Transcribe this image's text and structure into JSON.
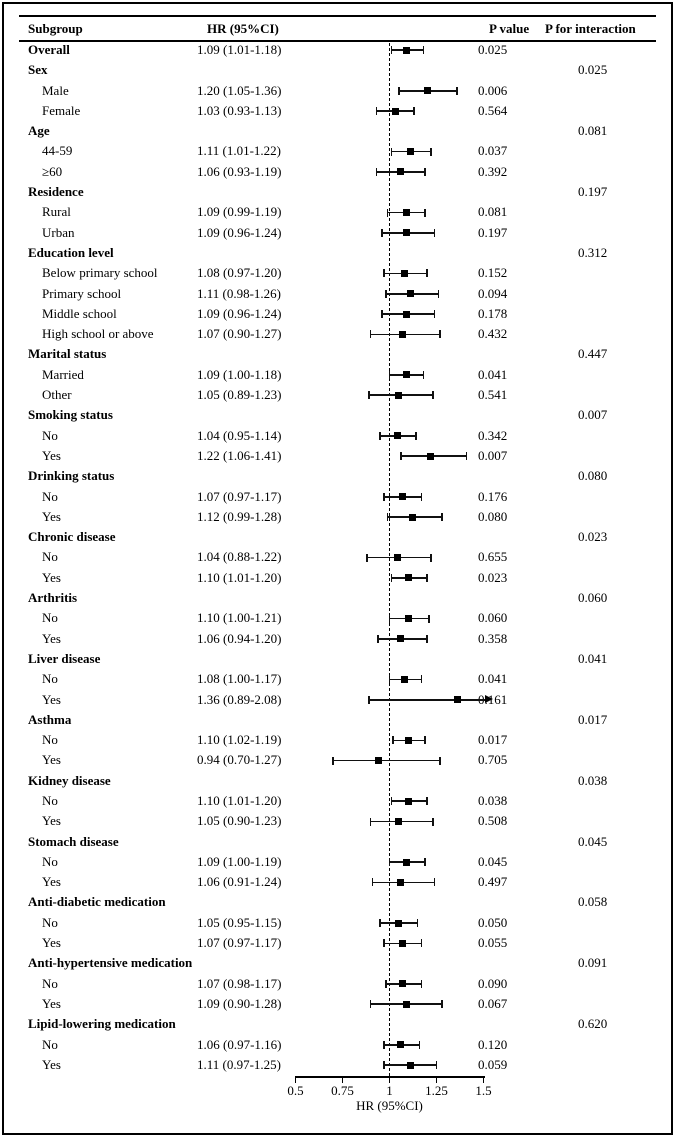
{
  "figure": {
    "columns": {
      "subgroup": "Subgroup",
      "hr": "HR (95%CI)",
      "p": "P value",
      "p_int": "P for interaction"
    }
  },
  "chart_data": {
    "type": "scatter",
    "subtype": "forest-plot",
    "xlabel": "HR (95%CI)",
    "xlim": [
      0.5,
      1.5
    ],
    "x_ticks": [
      0.5,
      0.75,
      1,
      1.25,
      1.5
    ],
    "x_tick_labels": [
      "0.5",
      "0.75",
      "1",
      "1.25",
      "1.5"
    ],
    "reference_line": 1.0,
    "grid": false,
    "marker_color": "#000000",
    "columns": [
      "Subgroup",
      "HR (95%CI)",
      "P value",
      "P for interaction"
    ],
    "rows": [
      {
        "label": "Overall",
        "indent": 0,
        "bold": true,
        "hr_text": "1.09 (1.01-1.18)",
        "hr": 1.09,
        "lo": 1.01,
        "hi": 1.18,
        "p": "0.025",
        "p_int": "",
        "arrow": false
      },
      {
        "label": "Sex",
        "indent": 0,
        "bold": true,
        "hr_text": "",
        "hr": null,
        "p": "",
        "p_int": "0.025"
      },
      {
        "label": "Male",
        "indent": 1,
        "bold": false,
        "hr_text": "1.20 (1.05-1.36)",
        "hr": 1.2,
        "lo": 1.05,
        "hi": 1.36,
        "p": "0.006",
        "p_int": "",
        "arrow": false
      },
      {
        "label": "Female",
        "indent": 1,
        "bold": false,
        "hr_text": "1.03 (0.93-1.13)",
        "hr": 1.03,
        "lo": 0.93,
        "hi": 1.13,
        "p": "0.564",
        "p_int": "",
        "arrow": false
      },
      {
        "label": "Age",
        "indent": 0,
        "bold": true,
        "hr_text": "",
        "hr": null,
        "p": "",
        "p_int": "0.081"
      },
      {
        "label": "44-59",
        "indent": 1,
        "bold": false,
        "hr_text": "1.11 (1.01-1.22)",
        "hr": 1.11,
        "lo": 1.01,
        "hi": 1.22,
        "p": "0.037",
        "p_int": "",
        "arrow": false
      },
      {
        "label": "≥60",
        "indent": 1,
        "bold": false,
        "hr_text": "1.06 (0.93-1.19)",
        "hr": 1.06,
        "lo": 0.93,
        "hi": 1.19,
        "p": "0.392",
        "p_int": "",
        "arrow": false
      },
      {
        "label": "Residence",
        "indent": 0,
        "bold": true,
        "hr_text": "",
        "hr": null,
        "p": "",
        "p_int": "0.197"
      },
      {
        "label": "Rural",
        "indent": 1,
        "bold": false,
        "hr_text": "1.09 (0.99-1.19)",
        "hr": 1.09,
        "lo": 0.99,
        "hi": 1.19,
        "p": "0.081",
        "p_int": "",
        "arrow": false
      },
      {
        "label": "Urban",
        "indent": 1,
        "bold": false,
        "hr_text": "1.09 (0.96-1.24)",
        "hr": 1.09,
        "lo": 0.96,
        "hi": 1.24,
        "p": "0.197",
        "p_int": "",
        "arrow": false
      },
      {
        "label": "Education level",
        "indent": 0,
        "bold": true,
        "hr_text": "",
        "hr": null,
        "p": "",
        "p_int": "0.312"
      },
      {
        "label": "Below primary school",
        "indent": 1,
        "bold": false,
        "hr_text": "1.08 (0.97-1.20)",
        "hr": 1.08,
        "lo": 0.97,
        "hi": 1.2,
        "p": "0.152",
        "p_int": "",
        "arrow": false
      },
      {
        "label": "Primary school",
        "indent": 1,
        "bold": false,
        "hr_text": "1.11 (0.98-1.26)",
        "hr": 1.11,
        "lo": 0.98,
        "hi": 1.26,
        "p": "0.094",
        "p_int": "",
        "arrow": false
      },
      {
        "label": "Middle school",
        "indent": 1,
        "bold": false,
        "hr_text": "1.09 (0.96-1.24)",
        "hr": 1.09,
        "lo": 0.96,
        "hi": 1.24,
        "p": "0.178",
        "p_int": "",
        "arrow": false
      },
      {
        "label": "High school or above",
        "indent": 1,
        "bold": false,
        "hr_text": "1.07 (0.90-1.27)",
        "hr": 1.07,
        "lo": 0.9,
        "hi": 1.27,
        "p": "0.432",
        "p_int": "",
        "arrow": false
      },
      {
        "label": "Marital status",
        "indent": 0,
        "bold": true,
        "hr_text": "",
        "hr": null,
        "p": "",
        "p_int": "0.447"
      },
      {
        "label": "Married",
        "indent": 1,
        "bold": false,
        "hr_text": "1.09 (1.00-1.18)",
        "hr": 1.09,
        "lo": 1.0,
        "hi": 1.18,
        "p": "0.041",
        "p_int": "",
        "arrow": false
      },
      {
        "label": "Other",
        "indent": 1,
        "bold": false,
        "hr_text": "1.05 (0.89-1.23)",
        "hr": 1.05,
        "lo": 0.89,
        "hi": 1.23,
        "p": "0.541",
        "p_int": "",
        "arrow": false
      },
      {
        "label": "Smoking status",
        "indent": 0,
        "bold": true,
        "hr_text": "",
        "hr": null,
        "p": "",
        "p_int": "0.007"
      },
      {
        "label": "No",
        "indent": 1,
        "bold": false,
        "hr_text": "1.04 (0.95-1.14)",
        "hr": 1.04,
        "lo": 0.95,
        "hi": 1.14,
        "p": "0.342",
        "p_int": "",
        "arrow": false
      },
      {
        "label": "Yes",
        "indent": 1,
        "bold": false,
        "hr_text": "1.22 (1.06-1.41)",
        "hr": 1.22,
        "lo": 1.06,
        "hi": 1.41,
        "p": "0.007",
        "p_int": "",
        "arrow": false
      },
      {
        "label": "Drinking status",
        "indent": 0,
        "bold": true,
        "hr_text": "",
        "hr": null,
        "p": "",
        "p_int": "0.080"
      },
      {
        "label": "No",
        "indent": 1,
        "bold": false,
        "hr_text": "1.07 (0.97-1.17)",
        "hr": 1.07,
        "lo": 0.97,
        "hi": 1.17,
        "p": "0.176",
        "p_int": "",
        "arrow": false
      },
      {
        "label": "Yes",
        "indent": 1,
        "bold": false,
        "hr_text": "1.12 (0.99-1.28)",
        "hr": 1.12,
        "lo": 0.99,
        "hi": 1.28,
        "p": "0.080",
        "p_int": "",
        "arrow": false
      },
      {
        "label": "Chronic disease",
        "indent": 0,
        "bold": true,
        "hr_text": "",
        "hr": null,
        "p": "",
        "p_int": "0.023"
      },
      {
        "label": "No",
        "indent": 1,
        "bold": false,
        "hr_text": "1.04 (0.88-1.22)",
        "hr": 1.04,
        "lo": 0.88,
        "hi": 1.22,
        "p": "0.655",
        "p_int": "",
        "arrow": false
      },
      {
        "label": "Yes",
        "indent": 1,
        "bold": false,
        "hr_text": "1.10 (1.01-1.20)",
        "hr": 1.1,
        "lo": 1.01,
        "hi": 1.2,
        "p": "0.023",
        "p_int": "",
        "arrow": false
      },
      {
        "label": "Arthritis",
        "indent": 0,
        "bold": true,
        "hr_text": "",
        "hr": null,
        "p": "",
        "p_int": "0.060"
      },
      {
        "label": "No",
        "indent": 1,
        "bold": false,
        "hr_text": "1.10 (1.00-1.21)",
        "hr": 1.1,
        "lo": 1.0,
        "hi": 1.21,
        "p": "0.060",
        "p_int": "",
        "arrow": false
      },
      {
        "label": "Yes",
        "indent": 1,
        "bold": false,
        "hr_text": "1.06 (0.94-1.20)",
        "hr": 1.06,
        "lo": 0.94,
        "hi": 1.2,
        "p": "0.358",
        "p_int": "",
        "arrow": false
      },
      {
        "label": "Liver disease",
        "indent": 0,
        "bold": true,
        "hr_text": "",
        "hr": null,
        "p": "",
        "p_int": "0.041"
      },
      {
        "label": "No",
        "indent": 1,
        "bold": false,
        "hr_text": "1.08 (1.00-1.17)",
        "hr": 1.08,
        "lo": 1.0,
        "hi": 1.17,
        "p": "0.041",
        "p_int": "",
        "arrow": false
      },
      {
        "label": "Yes",
        "indent": 1,
        "bold": false,
        "hr_text": "1.36 (0.89-2.08)",
        "hr": 1.36,
        "lo": 0.89,
        "hi": 2.08,
        "p": "0.161",
        "p_int": "",
        "arrow": true
      },
      {
        "label": "Asthma",
        "indent": 0,
        "bold": true,
        "hr_text": "",
        "hr": null,
        "p": "",
        "p_int": "0.017"
      },
      {
        "label": "No",
        "indent": 1,
        "bold": false,
        "hr_text": "1.10 (1.02-1.19)",
        "hr": 1.1,
        "lo": 1.02,
        "hi": 1.19,
        "p": "0.017",
        "p_int": "",
        "arrow": false
      },
      {
        "label": "Yes",
        "indent": 1,
        "bold": false,
        "hr_text": "0.94 (0.70-1.27)",
        "hr": 0.94,
        "lo": 0.7,
        "hi": 1.27,
        "p": "0.705",
        "p_int": "",
        "arrow": false
      },
      {
        "label": "Kidney disease",
        "indent": 0,
        "bold": true,
        "hr_text": "",
        "hr": null,
        "p": "",
        "p_int": "0.038"
      },
      {
        "label": "No",
        "indent": 1,
        "bold": false,
        "hr_text": "1.10 (1.01-1.20)",
        "hr": 1.1,
        "lo": 1.01,
        "hi": 1.2,
        "p": "0.038",
        "p_int": "",
        "arrow": false
      },
      {
        "label": "Yes",
        "indent": 1,
        "bold": false,
        "hr_text": "1.05 (0.90-1.23)",
        "hr": 1.05,
        "lo": 0.9,
        "hi": 1.23,
        "p": "0.508",
        "p_int": "",
        "arrow": false
      },
      {
        "label": "Stomach disease",
        "indent": 0,
        "bold": true,
        "hr_text": "",
        "hr": null,
        "p": "",
        "p_int": "0.045"
      },
      {
        "label": "No",
        "indent": 1,
        "bold": false,
        "hr_text": "1.09 (1.00-1.19)",
        "hr": 1.09,
        "lo": 1.0,
        "hi": 1.19,
        "p": "0.045",
        "p_int": "",
        "arrow": false
      },
      {
        "label": "Yes",
        "indent": 1,
        "bold": false,
        "hr_text": "1.06 (0.91-1.24)",
        "hr": 1.06,
        "lo": 0.91,
        "hi": 1.24,
        "p": "0.497",
        "p_int": "",
        "arrow": false
      },
      {
        "label": "Anti-diabetic medication",
        "indent": 0,
        "bold": true,
        "hr_text": "",
        "hr": null,
        "p": "",
        "p_int": "0.058"
      },
      {
        "label": "No",
        "indent": 1,
        "bold": false,
        "hr_text": "1.05 (0.95-1.15)",
        "hr": 1.05,
        "lo": 0.95,
        "hi": 1.15,
        "p": "0.050",
        "p_int": "",
        "arrow": false
      },
      {
        "label": "Yes",
        "indent": 1,
        "bold": false,
        "hr_text": "1.07 (0.97-1.17)",
        "hr": 1.07,
        "lo": 0.97,
        "hi": 1.17,
        "p": "0.055",
        "p_int": "",
        "arrow": false
      },
      {
        "label": "Anti-hypertensive medication",
        "indent": 0,
        "bold": true,
        "hr_text": "",
        "hr": null,
        "p": "",
        "p_int": "0.091"
      },
      {
        "label": "No",
        "indent": 1,
        "bold": false,
        "hr_text": "1.07 (0.98-1.17)",
        "hr": 1.07,
        "lo": 0.98,
        "hi": 1.17,
        "p": "0.090",
        "p_int": "",
        "arrow": false
      },
      {
        "label": "Yes",
        "indent": 1,
        "bold": false,
        "hr_text": "1.09 (0.90-1.28)",
        "hr": 1.09,
        "lo": 0.9,
        "hi": 1.28,
        "p": "0.067",
        "p_int": "",
        "arrow": false
      },
      {
        "label": "Lipid-lowering medication",
        "indent": 0,
        "bold": true,
        "hr_text": "",
        "hr": null,
        "p": "",
        "p_int": "0.620"
      },
      {
        "label": "No",
        "indent": 1,
        "bold": false,
        "hr_text": "1.06 (0.97-1.16)",
        "hr": 1.06,
        "lo": 0.97,
        "hi": 1.16,
        "p": "0.120",
        "p_int": "",
        "arrow": false
      },
      {
        "label": "Yes",
        "indent": 1,
        "bold": false,
        "hr_text": "1.11 (0.97-1.25)",
        "hr": 1.11,
        "lo": 0.97,
        "hi": 1.25,
        "p": "0.059",
        "p_int": "",
        "arrow": false
      }
    ]
  }
}
